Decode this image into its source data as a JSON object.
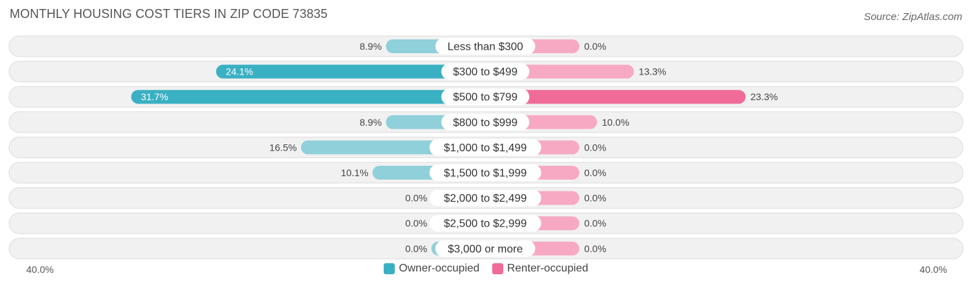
{
  "title": "MONTHLY HOUSING COST TIERS IN ZIP CODE 73835",
  "source": "Source: ZipAtlas.com",
  "colors": {
    "owner": "#3ab0c3",
    "owner_light": "#8fd0db",
    "renter": "#f06b98",
    "renter_light": "#f7a9c3"
  },
  "chart_data": {
    "type": "bar",
    "orientation": "diverging-horizontal",
    "categories": [
      "Less than $300",
      "$300 to $499",
      "$500 to $799",
      "$800 to $999",
      "$1,000 to $1,499",
      "$1,500 to $1,999",
      "$2,000 to $2,499",
      "$2,500 to $2,999",
      "$3,000 or more"
    ],
    "series": [
      {
        "name": "Owner-occupied",
        "values": [
          8.9,
          24.1,
          31.7,
          8.9,
          16.5,
          10.1,
          0.0,
          0.0,
          0.0
        ],
        "labels": [
          "8.9%",
          "24.1%",
          "31.7%",
          "8.9%",
          "16.5%",
          "10.1%",
          "0.0%",
          "0.0%",
          "0.0%"
        ]
      },
      {
        "name": "Renter-occupied",
        "values": [
          0.0,
          13.3,
          23.3,
          10.0,
          0.0,
          0.0,
          0.0,
          0.0,
          0.0
        ],
        "labels": [
          "0.0%",
          "13.3%",
          "23.3%",
          "10.0%",
          "0.0%",
          "0.0%",
          "0.0%",
          "0.0%",
          "0.0%"
        ]
      }
    ],
    "xlim": [
      -40,
      40
    ],
    "axis_left_label": "40.0%",
    "axis_right_label": "40.0%",
    "legend_position": "bottom-center"
  }
}
